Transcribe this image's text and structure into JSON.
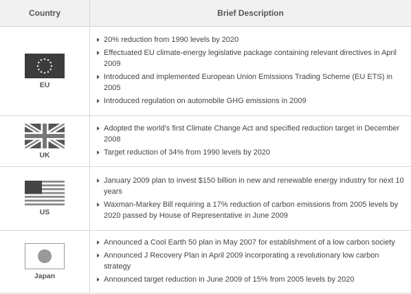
{
  "table": {
    "header": [
      "Country",
      "Brief Description"
    ],
    "rows": [
      {
        "country": "EU",
        "items": [
          "20% reduction from 1990 levels by 2020",
          "Effectuated EU climate-energy legislative package containing relevant directives in April 2009",
          "Introduced and implemented European Union Emissions Trading Scheme (EU ETS) in 2005",
          "Introduced regulation on automobile GHG emissions in 2009"
        ]
      },
      {
        "country": "UK",
        "items": [
          "Adopted the world's first Climate Change Act and specified reduction target in December 2008",
          "Target reduction of 34% from 1990 levels by 2020"
        ]
      },
      {
        "country": "US",
        "items": [
          "January 2009 plan to invest $150 billion in new and renewable energy industry for next 10 years",
          "Waxman-Markey Bill requiring a 17% reduction of carbon emissions from 2005 levels by 2020 passed by House of Representative in June 2009"
        ]
      },
      {
        "country": "Japan",
        "items": [
          "Announced a Cool Earth 50 plan in May 2007 for establishment of a low carbon society",
          "Announced J Recovery Plan in April 2009 incorporating a revolutionary low carbon strategy",
          "Announced target reduction in June 2009 of 15% from 2005 levels by 2020"
        ]
      }
    ]
  }
}
